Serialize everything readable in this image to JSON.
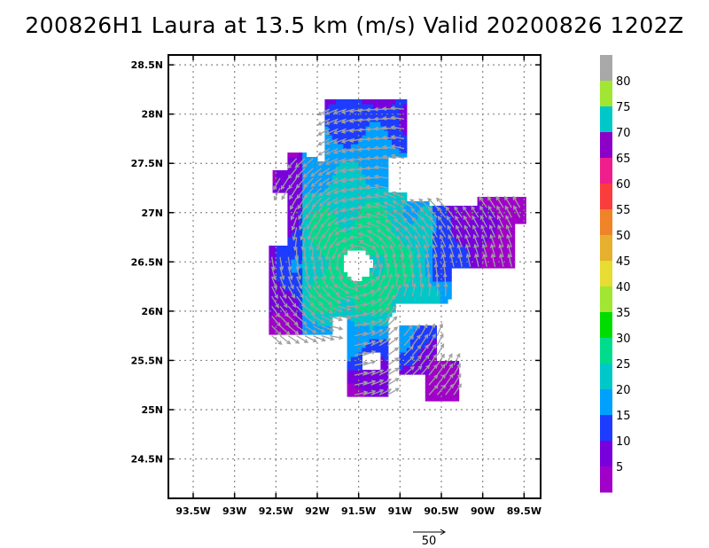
{
  "title": "200826H1 Laura at 13.5 km (m/s) Valid 20200826 1202Z",
  "chart_data": {
    "type": "heatmap",
    "title": "200826H1 Laura at 13.5 km (m/s) Valid 20200826 1202Z",
    "xlabel": "",
    "ylabel": "",
    "xlim": [
      -93.8,
      -89.3
    ],
    "ylim": [
      24.1,
      28.6
    ],
    "x_ticks": [
      {
        "value": -93.5,
        "label": "93.5W"
      },
      {
        "value": -93.0,
        "label": "93W"
      },
      {
        "value": -92.5,
        "label": "92.5W"
      },
      {
        "value": -92.0,
        "label": "92W"
      },
      {
        "value": -91.5,
        "label": "91.5W"
      },
      {
        "value": -91.0,
        "label": "91W"
      },
      {
        "value": -90.5,
        "label": "90.5W"
      },
      {
        "value": -90.0,
        "label": "90W"
      },
      {
        "value": -89.5,
        "label": "89.5W"
      }
    ],
    "y_ticks": [
      {
        "value": 24.5,
        "label": "24.5N"
      },
      {
        "value": 25.0,
        "label": "25N"
      },
      {
        "value": 25.5,
        "label": "25.5N"
      },
      {
        "value": 26.0,
        "label": "26N"
      },
      {
        "value": 26.5,
        "label": "26.5N"
      },
      {
        "value": 27.0,
        "label": "27N"
      },
      {
        "value": 27.5,
        "label": "27.5N"
      },
      {
        "value": 28.0,
        "label": "28N"
      },
      {
        "value": 28.5,
        "label": "28.5N"
      }
    ],
    "grid": true,
    "center": {
      "lon": -91.52,
      "lat": 26.47
    },
    "colorbar": {
      "labels": [
        "5",
        "10",
        "15",
        "20",
        "25",
        "30",
        "35",
        "40",
        "45",
        "50",
        "55",
        "60",
        "65",
        "70",
        "75",
        "80"
      ],
      "colors": [
        "#a000c8",
        "#7800dc",
        "#1e3cff",
        "#00a0ff",
        "#00c8c8",
        "#00dc8c",
        "#00dc00",
        "#a0e632",
        "#e6dc32",
        "#e6af2d",
        "#f08228",
        "#fa3c3c",
        "#f01e8c",
        "#8c00c8",
        "#00c8c8",
        "#a0e632",
        "#a8a8a8"
      ],
      "colors_note_unused": ""
    },
    "vector_reference": {
      "value": 50,
      "label": "50"
    }
  }
}
